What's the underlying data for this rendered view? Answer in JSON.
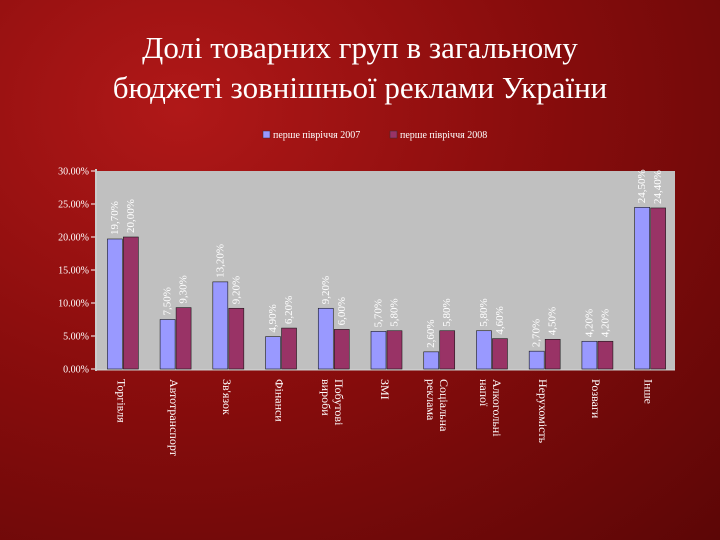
{
  "slide": {
    "title_line1": "Долі товарних груп в загальному",
    "title_line2": "бюджеті зовнішньої реклами України"
  },
  "colors": {
    "background": "#8a0d0d",
    "plot_area": "#c0c0c0",
    "series_2007": "#9999ff",
    "series_2008": "#993366",
    "text": "#ffffff"
  },
  "chart_data": {
    "type": "bar",
    "title": "",
    "xlabel": "",
    "ylabel": "",
    "ylim": [
      0,
      30
    ],
    "yticks": [
      "0.00%",
      "5.00%",
      "10.00%",
      "15.00%",
      "20.00%",
      "25.00%",
      "30.00%"
    ],
    "grid": false,
    "legend_position": "top",
    "categories": [
      "Торгівля",
      "Автотранспорт",
      "Зв'язок",
      "Фінанси",
      "Побутові вироби",
      "ЗМІ",
      "Соціальна реклама",
      "Алкогольні напої",
      "Нерухомість",
      "Розваги",
      "Інше"
    ],
    "series": [
      {
        "name": "перше півріччя 2007",
        "values": [
          19.7,
          7.5,
          13.2,
          4.9,
          9.2,
          5.7,
          2.6,
          5.8,
          2.7,
          4.2,
          24.5
        ],
        "labels": [
          "19,70%",
          "7,50%",
          "13,20%",
          "4,90%",
          "9,20%",
          "5,70%",
          "2,60%",
          "5,80%",
          "2,70%",
          "4,20%",
          "24,50%"
        ]
      },
      {
        "name": "перше півріччя 2008",
        "values": [
          20.0,
          9.3,
          9.2,
          6.2,
          6.0,
          5.8,
          5.8,
          4.6,
          4.5,
          4.2,
          24.4
        ],
        "labels": [
          "20,00%",
          "9,30%",
          "9,20%",
          "6,20%",
          "6,00%",
          "5,80%",
          "5,80%",
          "4,60%",
          "4,50%",
          "4,20%",
          "24,40%"
        ]
      }
    ]
  }
}
